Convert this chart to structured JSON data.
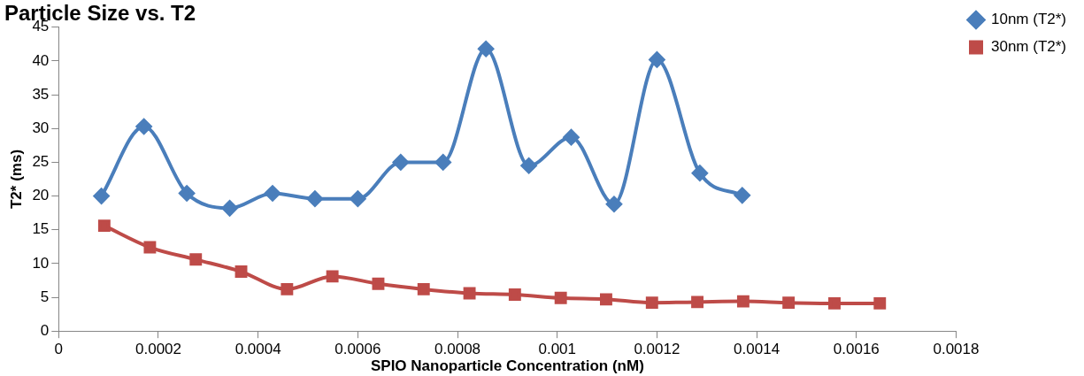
{
  "chart_data": {
    "type": "line",
    "title": "Particle Size vs. T2",
    "xlabel": "SPIO Nanoparticle Concentration (nM)",
    "ylabel": "T2* (ms)",
    "xlim": [
      0,
      0.0018
    ],
    "xticks": [
      0,
      0.0002,
      0.0004,
      0.0006,
      0.0008,
      0.001,
      0.0012,
      0.0014,
      0.0016,
      0.0018
    ],
    "ylim": [
      0,
      45
    ],
    "yticks": [
      0,
      5,
      10,
      15,
      20,
      25,
      30,
      35,
      40,
      45
    ],
    "grid": false,
    "legend": "top right",
    "series": [
      {
        "name": "10nm (T2*)",
        "color": "#4a7ebb",
        "marker": "diamond",
        "x": [
          8.57e-05,
          0.000171,
          0.000257,
          0.000343,
          0.000429,
          0.000514,
          0.0006,
          0.000686,
          0.000771,
          0.000857,
          0.000943,
          0.001028,
          0.001114,
          0.0012,
          0.001286,
          0.001371
        ],
        "values": [
          20,
          30.3,
          20.4,
          18.2,
          20.4,
          19.6,
          19.6,
          25,
          25,
          41.8,
          24.5,
          28.7,
          18.8,
          40.2,
          23.4,
          20.1
        ]
      },
      {
        "name": "30nm (T2*)",
        "color": "#be4b48",
        "marker": "square",
        "x": [
          9.15e-05,
          0.000183,
          0.000275,
          0.000366,
          0.000458,
          0.000549,
          0.000641,
          0.000732,
          0.000824,
          0.000915,
          0.001007,
          0.001098,
          0.00119,
          0.001281,
          0.001373,
          0.001464,
          0.001556,
          0.001647
        ],
        "values": [
          15.6,
          12.4,
          10.6,
          8.8,
          6.2,
          8.1,
          7,
          6.2,
          5.6,
          5.4,
          4.9,
          4.7,
          4.2,
          4.3,
          4.4,
          4.2,
          4.1,
          4.1
        ]
      }
    ]
  }
}
